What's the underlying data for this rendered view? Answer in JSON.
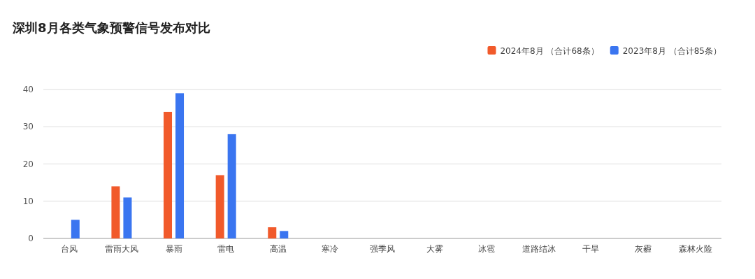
{
  "chart_data": {
    "type": "bar",
    "title": "深圳8月各类气象预警信号发布对比",
    "categories": [
      "台风",
      "雷雨大风",
      "暴雨",
      "雷电",
      "高温",
      "寒冷",
      "强季风",
      "大雾",
      "冰雹",
      "道路结冰",
      "干旱",
      "灰霾",
      "森林火险"
    ],
    "series": [
      {
        "name": "2024年8月 （合计68条）",
        "color": "#f15a2b",
        "values": [
          0,
          14,
          34,
          17,
          3,
          0,
          0,
          0,
          0,
          0,
          0,
          0,
          0
        ]
      },
      {
        "name": "2023年8月 （合计85条）",
        "color": "#3a75f0",
        "values": [
          5,
          11,
          39,
          28,
          2,
          0,
          0,
          0,
          0,
          0,
          0,
          0,
          0
        ]
      }
    ],
    "ylim": [
      0,
      40
    ],
    "yticks": [
      0,
      10,
      20,
      30,
      40
    ],
    "grid": "y",
    "legend": "top right"
  }
}
